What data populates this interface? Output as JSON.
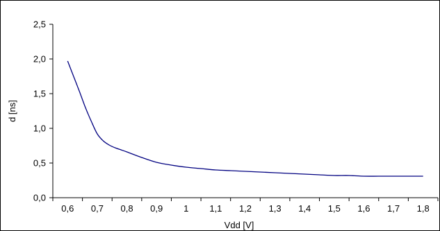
{
  "chart_data": {
    "type": "line",
    "title": "",
    "xlabel": "Vdd [V]",
    "ylabel": "d [ns]",
    "xlim": [
      0.55,
      1.85
    ],
    "ylim": [
      0,
      2.5
    ],
    "grid": false,
    "legend": "none",
    "x_ticks": [
      0.6,
      0.7,
      0.8,
      0.9,
      1.0,
      1.1,
      1.2,
      1.3,
      1.4,
      1.5,
      1.6,
      1.7,
      1.8
    ],
    "x_tick_labels": [
      "0,6",
      "0,7",
      "0,8",
      "0,9",
      "1",
      "1,1",
      "1,2",
      "1,3",
      "1,4",
      "1,5",
      "1,6",
      "1,7",
      "1,8"
    ],
    "y_ticks": [
      0,
      0.5,
      1.0,
      1.5,
      2.0,
      2.5
    ],
    "y_tick_labels": [
      "0,0",
      "0,5",
      "1,0",
      "1,5",
      "2,0",
      "2,5"
    ],
    "series": [
      {
        "color": "#000080",
        "x": [
          0.6,
          0.62,
          0.64,
          0.66,
          0.68,
          0.7,
          0.72,
          0.74,
          0.76,
          0.78,
          0.8,
          0.85,
          0.9,
          0.95,
          1.0,
          1.05,
          1.1,
          1.15,
          1.2,
          1.25,
          1.3,
          1.35,
          1.4,
          1.45,
          1.5,
          1.55,
          1.6,
          1.65,
          1.7,
          1.75,
          1.8
        ],
        "y": [
          1.97,
          1.75,
          1.53,
          1.3,
          1.1,
          0.92,
          0.82,
          0.76,
          0.72,
          0.69,
          0.66,
          0.58,
          0.51,
          0.47,
          0.44,
          0.42,
          0.4,
          0.39,
          0.38,
          0.37,
          0.36,
          0.35,
          0.34,
          0.33,
          0.32,
          0.32,
          0.31,
          0.31,
          0.31,
          0.31,
          0.31
        ]
      }
    ]
  }
}
